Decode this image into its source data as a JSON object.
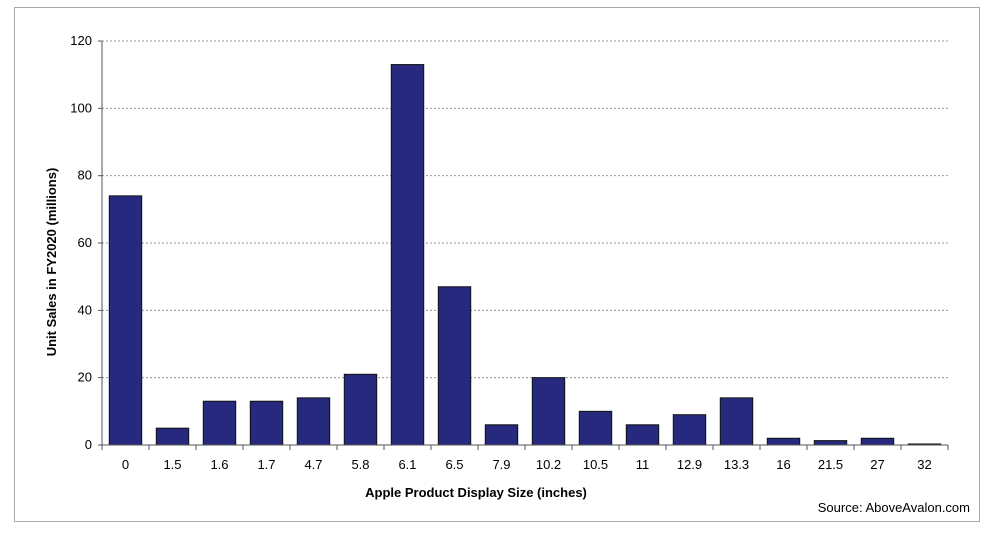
{
  "chart_data": {
    "type": "bar",
    "categories": [
      "0",
      "1.5",
      "1.6",
      "1.7",
      "4.7",
      "5.8",
      "6.1",
      "6.5",
      "7.9",
      "10.2",
      "10.5",
      "11",
      "12.9",
      "13.3",
      "16",
      "21.5",
      "27",
      "32"
    ],
    "values": [
      74,
      5,
      13,
      13,
      14,
      21,
      113,
      47,
      6,
      20,
      10,
      6,
      9,
      14,
      2,
      1.3,
      2,
      0.3
    ],
    "title": "",
    "xlabel": "Apple Product Display Size (inches)",
    "ylabel": "Unit Sales in FY2020 (millions)",
    "ylim": [
      0,
      120
    ],
    "yticks": [
      0,
      20,
      40,
      60,
      80,
      100,
      120
    ],
    "grid": true,
    "bar_color": "#27297e",
    "grid_color": "#9a9a9a",
    "source": "Source: AboveAvalon.com"
  }
}
